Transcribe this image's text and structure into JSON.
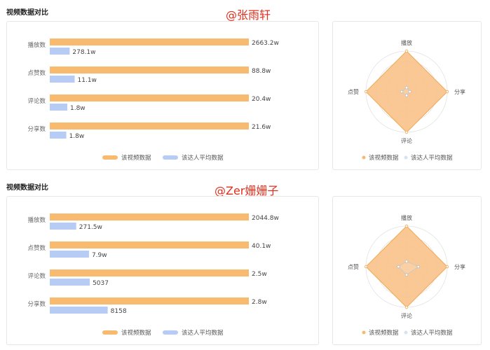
{
  "colors": {
    "video": "#f7ba6f",
    "avg": "#b7ccf5",
    "radar_fill": "#f8c28a",
    "radar_stroke": "#f0a957",
    "watermark": "#e0301e"
  },
  "sections": [
    {
      "title": "视频数据对比",
      "watermark": "@张雨轩",
      "legend": {
        "video": "该视频数据",
        "avg": "该达人平均数据"
      },
      "radar_legend": {
        "video": "该视频数据",
        "avg": "该达人平均数据"
      },
      "chart_data": {
        "type": "bar",
        "orientation": "horizontal",
        "categories": [
          "播放数",
          "点赞数",
          "评论数",
          "分享数"
        ],
        "series": [
          {
            "name": "该视频数据",
            "values": [
              2663.2,
              88.8,
              20.4,
              21.6
            ],
            "labels": [
              "2663.2w",
              "88.8w",
              "20.4w",
              "21.6w"
            ],
            "fill": [
              1.0,
              1.0,
              1.0,
              1.0
            ]
          },
          {
            "name": "该达人平均数据",
            "values": [
              278.1,
              11.1,
              1.8,
              1.8
            ],
            "labels": [
              "278.1w",
              "11.1w",
              "1.8w",
              "1.8w"
            ],
            "fill": [
              0.1,
              0.125,
              0.088,
              0.083
            ]
          }
        ]
      },
      "radar_data": {
        "type": "radar",
        "axes": [
          "播放",
          "分享",
          "评论",
          "点赞"
        ],
        "series": [
          {
            "name": "该视频数据",
            "values": [
              1.0,
              1.0,
              1.0,
              1.0
            ]
          },
          {
            "name": "该达人平均数据",
            "values": [
              0.1,
              0.08,
              0.09,
              0.12
            ]
          }
        ]
      }
    },
    {
      "title": "视频数据对比",
      "watermark": "@Zer姗姗子",
      "legend": {
        "video": "该视频数据",
        "avg": "该达人平均数据"
      },
      "radar_legend": {
        "video": "该视频数据",
        "avg": "该达人平均数据"
      },
      "chart_data": {
        "type": "bar",
        "orientation": "horizontal",
        "categories": [
          "播放数",
          "点赞数",
          "评论数",
          "分享数"
        ],
        "series": [
          {
            "name": "该视频数据",
            "values": [
              2044.8,
              40.1,
              2.5,
              2.8
            ],
            "labels": [
              "2044.8w",
              "40.1w",
              "2.5w",
              "2.8w"
            ],
            "fill": [
              1.0,
              1.0,
              1.0,
              1.0
            ]
          },
          {
            "name": "该达人平均数据",
            "values": [
              271.5,
              7.9,
              0.5037,
              0.8158
            ],
            "labels": [
              "271.5w",
              "7.9w",
              "5037",
              "8158"
            ],
            "fill": [
              0.133,
              0.197,
              0.201,
              0.291
            ]
          }
        ]
      },
      "radar_data": {
        "type": "radar",
        "axes": [
          "播放",
          "分享",
          "评论",
          "点赞"
        ],
        "series": [
          {
            "name": "该视频数据",
            "values": [
              1.0,
              1.0,
              1.0,
              1.0
            ]
          },
          {
            "name": "该达人平均数据",
            "values": [
              0.13,
              0.29,
              0.2,
              0.2
            ]
          }
        ]
      }
    }
  ]
}
